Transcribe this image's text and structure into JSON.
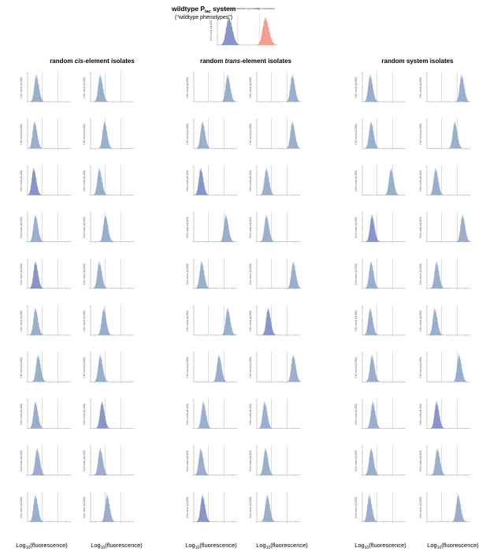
{
  "header": {
    "title_main": "wildtype P",
    "title_sub": "lac",
    "title_end": " system",
    "subtitle": "(\"wildtype phenotypes\")",
    "regions": [
      "no expression",
      "intermediate expression",
      "high expression"
    ]
  },
  "panels": {
    "tick_label": "1  2  3  4  5",
    "ylabel": "Cell count (x1,000)",
    "xlabel_main": "Log",
    "xlabel_sub": "10",
    "xlabel_end": "(fluorescence)"
  },
  "columns": [
    {
      "pre": "random ",
      "em": "cis",
      "post": "-element isolates"
    },
    {
      "pre": "random ",
      "em": "trans",
      "post": "-element isolates"
    },
    {
      "pre": "random system isolates",
      "em": "",
      "post": ""
    }
  ],
  "colors": {
    "blue": "#8fa6c6",
    "dark_blue": "#7b8ac0",
    "red": "#f19484",
    "line": "#bfbfbf"
  },
  "chart_data": {
    "type": "area",
    "x_scale": "log10 fluorescence",
    "xlim": [
      0.5,
      5.5
    ],
    "threshold_lines": [
      2.2,
      4.0
    ],
    "wildtype": [
      {
        "name": "no expression",
        "peak": 1.45,
        "color": "dark_blue"
      },
      {
        "name": "high expression",
        "peak": 4.5,
        "color": "red"
      }
    ],
    "cis_peaks": [
      [
        1.5,
        1.6
      ],
      [
        1.3,
        2.1
      ],
      [
        1.2,
        1.5
      ],
      [
        1.4,
        2.2
      ],
      [
        1.4,
        1.5
      ],
      [
        1.4,
        2.0
      ],
      [
        1.7,
        1.6
      ],
      [
        1.4,
        1.8
      ],
      [
        1.6,
        1.6
      ],
      [
        1.4,
        2.4
      ]
    ],
    "cis_dark": [
      [
        false,
        false
      ],
      [
        false,
        false
      ],
      [
        true,
        false
      ],
      [
        false,
        false
      ],
      [
        true,
        false
      ],
      [
        false,
        false
      ],
      [
        false,
        false
      ],
      [
        false,
        true
      ],
      [
        false,
        false
      ],
      [
        false,
        false
      ]
    ],
    "trans_peaks": [
      [
        4.4,
        4.6
      ],
      [
        1.5,
        4.6
      ],
      [
        1.3,
        1.6
      ],
      [
        4.2,
        1.6
      ],
      [
        1.4,
        4.7
      ],
      [
        4.4,
        1.8
      ],
      [
        3.4,
        4.7
      ],
      [
        1.6,
        1.4
      ],
      [
        1.3,
        1.5
      ],
      [
        1.5,
        1.7
      ]
    ],
    "trans_dark": [
      [
        false,
        false
      ],
      [
        false,
        false
      ],
      [
        true,
        false
      ],
      [
        false,
        false
      ],
      [
        false,
        false
      ],
      [
        false,
        true
      ],
      [
        false,
        false
      ],
      [
        false,
        false
      ],
      [
        false,
        false
      ],
      [
        true,
        false
      ]
    ],
    "system_peaks": [
      [
        1.4,
        4.5
      ],
      [
        1.5,
        3.7
      ],
      [
        3.8,
        1.5
      ],
      [
        1.6,
        4.6
      ],
      [
        1.5,
        1.6
      ],
      [
        1.4,
        1.4
      ],
      [
        1.6,
        4.2
      ],
      [
        1.7,
        1.6
      ],
      [
        1.5,
        1.7
      ],
      [
        1.3,
        4.1
      ]
    ],
    "system_dark": [
      [
        false,
        false
      ],
      [
        false,
        false
      ],
      [
        false,
        false
      ],
      [
        true,
        false
      ],
      [
        false,
        false
      ],
      [
        false,
        false
      ],
      [
        false,
        false
      ],
      [
        false,
        true
      ],
      [
        false,
        false
      ],
      [
        false,
        false
      ]
    ]
  }
}
